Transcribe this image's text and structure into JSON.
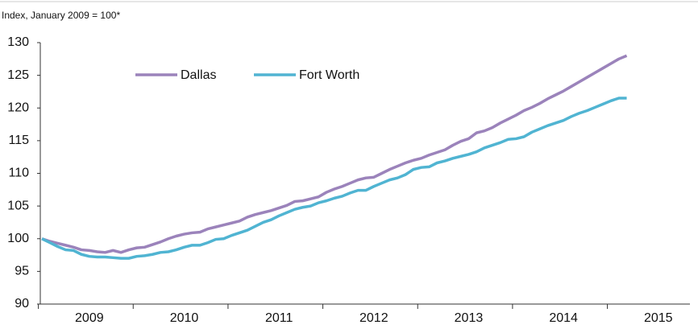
{
  "chart_data": {
    "type": "line",
    "subtitle": "Index, January 2009 = 100*",
    "categories": [
      null,
      null,
      null,
      null,
      null,
      null,
      "2009",
      null,
      null,
      null,
      null,
      null,
      null,
      null,
      null,
      null,
      null,
      null,
      "2010",
      null,
      null,
      null,
      null,
      null,
      null,
      null,
      null,
      null,
      null,
      null,
      "2011",
      null,
      null,
      null,
      null,
      null,
      null,
      null,
      null,
      null,
      null,
      null,
      "2012",
      null,
      null,
      null,
      null,
      null,
      null,
      null,
      null,
      null,
      null,
      null,
      "2013",
      null,
      null,
      null,
      null,
      null,
      null,
      null,
      null,
      null,
      null,
      null,
      "2014",
      null,
      null,
      null,
      null,
      null,
      null,
      null,
      null,
      null,
      null,
      null,
      "2015",
      null,
      null,
      null,
      null
    ],
    "series": [
      {
        "name": "Dallas",
        "color": "#9b83bb",
        "values": [
          100,
          99.6,
          99.3,
          99.0,
          98.7,
          98.3,
          98.2,
          98.0,
          97.9,
          98.2,
          97.9,
          98.3,
          98.6,
          98.7,
          99.1,
          99.5,
          100.0,
          100.4,
          100.7,
          100.9,
          101.0,
          101.5,
          101.8,
          102.1,
          102.4,
          102.7,
          103.3,
          103.7,
          104.0,
          104.3,
          104.7,
          105.1,
          105.7,
          105.8,
          106.1,
          106.4,
          107.1,
          107.6,
          108.0,
          108.5,
          109.0,
          109.3,
          109.4,
          110.0,
          110.6,
          111.1,
          111.6,
          112.0,
          112.3,
          112.8,
          113.2,
          113.6,
          114.3,
          114.9,
          115.3,
          116.2,
          116.5,
          117.0,
          117.7,
          118.3,
          118.9,
          119.6,
          120.1,
          120.7,
          121.4,
          122.0,
          122.6,
          123.3,
          124.0,
          124.7,
          125.4,
          126.1,
          126.8,
          127.5,
          128.0,
          null,
          null,
          null,
          null,
          null,
          null,
          null,
          null
        ]
      },
      {
        "name": "Fort Worth",
        "color": "#50b4d2",
        "values": [
          100,
          99.4,
          98.8,
          98.3,
          98.2,
          97.6,
          97.3,
          97.2,
          97.2,
          97.1,
          97.0,
          97.0,
          97.3,
          97.4,
          97.6,
          97.9,
          98.0,
          98.3,
          98.7,
          99.0,
          99.0,
          99.4,
          99.9,
          100.0,
          100.5,
          100.9,
          101.3,
          101.9,
          102.5,
          102.9,
          103.5,
          104.0,
          104.5,
          104.8,
          105.0,
          105.5,
          105.8,
          106.2,
          106.5,
          107.0,
          107.4,
          107.4,
          108.0,
          108.5,
          109.0,
          109.3,
          109.8,
          110.6,
          110.9,
          111.0,
          111.6,
          111.9,
          112.3,
          112.6,
          112.9,
          113.3,
          113.9,
          114.3,
          114.7,
          115.2,
          115.3,
          115.6,
          116.3,
          116.8,
          117.3,
          117.7,
          118.1,
          118.7,
          119.2,
          119.6,
          120.1,
          120.6,
          121.1,
          121.5,
          121.5,
          null,
          null,
          null,
          null,
          null,
          null,
          null,
          null
        ]
      }
    ],
    "ylim": [
      90,
      130
    ],
    "yticks": [
      90,
      95,
      100,
      105,
      110,
      115,
      120,
      125,
      130
    ],
    "grid": false
  }
}
